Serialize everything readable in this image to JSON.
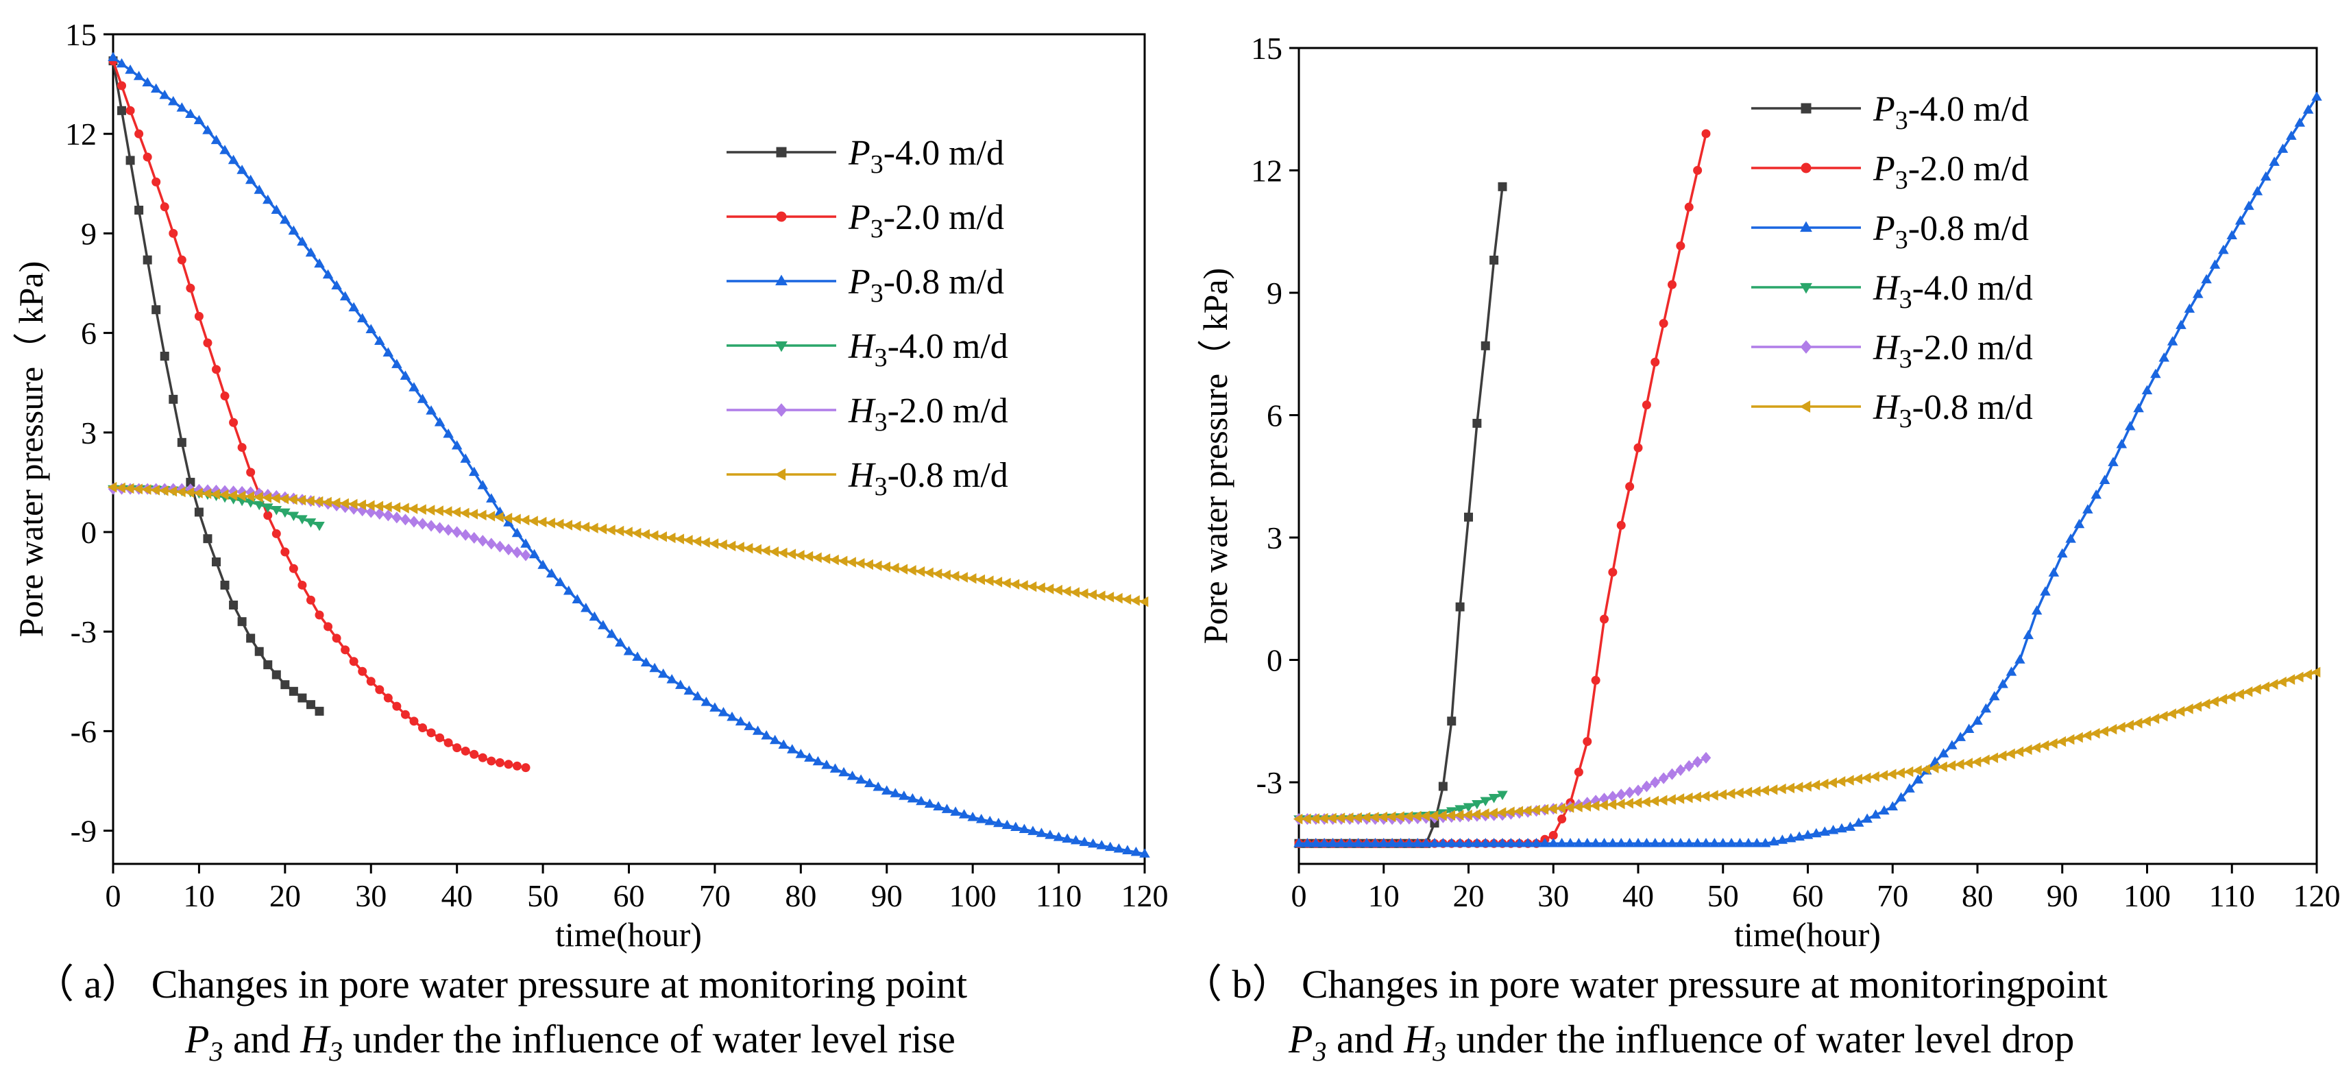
{
  "chart_data": [
    {
      "type": "line",
      "panel": "a",
      "xlabel": "time(hour)",
      "ylabel": "Pore water pressure（ kPa)",
      "xlim": [
        0,
        120
      ],
      "ylim": [
        -10,
        15
      ],
      "xticks": [
        0,
        10,
        20,
        30,
        40,
        50,
        60,
        70,
        80,
        90,
        100,
        110,
        120
      ],
      "yticks": [
        -9,
        -6,
        -3,
        0,
        3,
        6,
        9,
        12,
        15
      ],
      "legend_position": "top-right",
      "caption_line1": "（ a） Changes in pore water pressure at monitoring point",
      "caption_line2": {
        "p": "P",
        "p_sub": "3",
        "mid": " and ",
        "h": "H",
        "h_sub": "3",
        "rest": " under the  influence of water level rise"
      },
      "series": [
        {
          "name": "P3-4.0 m/d",
          "name_base": "P",
          "name_sub": "3",
          "name_rest": "-4.0 m/d",
          "color": "#3d3d3d",
          "marker": "square",
          "points": [
            [
              0,
              14.2
            ],
            [
              1,
              12.7
            ],
            [
              2,
              11.2
            ],
            [
              3,
              9.7
            ],
            [
              4,
              8.2
            ],
            [
              5,
              6.7
            ],
            [
              6,
              5.3
            ],
            [
              7,
              4
            ],
            [
              8,
              2.7
            ],
            [
              9,
              1.5
            ],
            [
              10,
              0.6
            ],
            [
              11,
              -0.2
            ],
            [
              12,
              -0.9
            ],
            [
              13,
              -1.6
            ],
            [
              14,
              -2.2
            ],
            [
              15,
              -2.7
            ],
            [
              16,
              -3.2
            ],
            [
              17,
              -3.6
            ],
            [
              18,
              -4
            ],
            [
              19,
              -4.3
            ],
            [
              20,
              -4.6
            ],
            [
              21,
              -4.8
            ],
            [
              22,
              -5
            ],
            [
              23,
              -5.2
            ],
            [
              24,
              -5.4
            ]
          ]
        },
        {
          "name": "P3-2.0 m/d",
          "name_base": "P",
          "name_sub": "3",
          "name_rest": "-2.0 m/d",
          "color": "#ee2a2a",
          "marker": "circle",
          "points": [
            [
              0,
              14.2
            ],
            [
              2,
              12.7
            ],
            [
              4,
              11.3
            ],
            [
              6,
              9.8
            ],
            [
              8,
              8.2
            ],
            [
              10,
              6.5
            ],
            [
              12,
              4.9
            ],
            [
              14,
              3.3
            ],
            [
              16,
              1.8
            ],
            [
              18,
              0.5
            ],
            [
              20,
              -0.6
            ],
            [
              22,
              -1.6
            ],
            [
              24,
              -2.5
            ],
            [
              26,
              -3.2
            ],
            [
              28,
              -3.9
            ],
            [
              30,
              -4.5
            ],
            [
              32,
              -5
            ],
            [
              34,
              -5.5
            ],
            [
              36,
              -5.9
            ],
            [
              38,
              -6.2
            ],
            [
              40,
              -6.5
            ],
            [
              42,
              -6.7
            ],
            [
              44,
              -6.9
            ],
            [
              46,
              -7
            ],
            [
              48,
              -7.1
            ]
          ]
        },
        {
          "name": "P3-0.8 m/d",
          "name_base": "P",
          "name_sub": "3",
          "name_rest": "-0.8 m/d",
          "color": "#1a66e0",
          "marker": "triangle-up",
          "points": [
            [
              0,
              14.3
            ],
            [
              10,
              12.4
            ],
            [
              20,
              9.4
            ],
            [
              30,
              6.1
            ],
            [
              40,
              2.6
            ],
            [
              45,
              0.6
            ],
            [
              50,
              -1
            ],
            [
              60,
              -3.6
            ],
            [
              70,
              -5.3
            ],
            [
              80,
              -6.7
            ],
            [
              90,
              -7.8
            ],
            [
              100,
              -8.6
            ],
            [
              110,
              -9.2
            ],
            [
              120,
              -9.7
            ]
          ]
        },
        {
          "name": "H3-4.0 m/d",
          "name_base": "H",
          "name_sub": "3",
          "name_rest": "-4.0 m/d",
          "color": "#2aa66a",
          "marker": "triangle-down",
          "points": [
            [
              0,
              1.3
            ],
            [
              4,
              1.3
            ],
            [
              8,
              1.25
            ],
            [
              12,
              1.1
            ],
            [
              16,
              0.9
            ],
            [
              20,
              0.6
            ],
            [
              24,
              0.2
            ]
          ]
        },
        {
          "name": "H3-2.0 m/d",
          "name_base": "H",
          "name_sub": "3",
          "name_rest": "-2.0 m/d",
          "color": "#b07de8",
          "marker": "diamond",
          "points": [
            [
              0,
              1.3
            ],
            [
              8,
              1.3
            ],
            [
              16,
              1.2
            ],
            [
              24,
              0.9
            ],
            [
              32,
              0.5
            ],
            [
              40,
              0
            ],
            [
              48,
              -0.7
            ]
          ]
        },
        {
          "name": "H3-0.8 m/d",
          "name_base": "H",
          "name_sub": "3",
          "name_rest": "-0.8 m/d",
          "color": "#d4a017",
          "marker": "triangle-left",
          "points": [
            [
              0,
              1.35
            ],
            [
              20,
              1
            ],
            [
              40,
              0.6
            ],
            [
              60,
              0
            ],
            [
              80,
              -0.7
            ],
            [
              100,
              -1.4
            ],
            [
              120,
              -2.1
            ]
          ]
        }
      ]
    },
    {
      "type": "line",
      "panel": "b",
      "xlabel": "time(hour)",
      "ylabel": "Pore water pressure（ kPa)",
      "xlim": [
        0,
        120
      ],
      "ylim": [
        -5,
        15
      ],
      "xticks": [
        0,
        10,
        20,
        30,
        40,
        50,
        60,
        70,
        80,
        90,
        100,
        110,
        120
      ],
      "yticks": [
        -3,
        0,
        3,
        6,
        9,
        12,
        15
      ],
      "legend_position": "top-left",
      "caption_line1": "（ b） Changes in pore water pressure at monitoringpoint",
      "caption_line2": {
        "p": "P",
        "p_sub": "3",
        "mid": " and ",
        "h": "H",
        "h_sub": "3",
        "rest": " under the  influence of water level  drop"
      },
      "series": [
        {
          "name": "P3-4.0 m/d",
          "name_base": "P",
          "name_sub": "3",
          "name_rest": "-4.0 m/d",
          "color": "#3d3d3d",
          "marker": "square",
          "points": [
            [
              0,
              -4.5
            ],
            [
              15,
              -4.5
            ],
            [
              16,
              -4
            ],
            [
              17,
              -3.1
            ],
            [
              18,
              -1.5
            ],
            [
              19,
              1.3
            ],
            [
              20,
              3.5
            ],
            [
              21,
              5.8
            ],
            [
              22,
              7.7
            ],
            [
              23,
              9.8
            ],
            [
              24,
              11.6
            ]
          ]
        },
        {
          "name": "P3-2.0 m/d",
          "name_base": "P",
          "name_sub": "3",
          "name_rest": "-2.0 m/d",
          "color": "#ee2a2a",
          "marker": "circle",
          "points": [
            [
              0,
              -4.5
            ],
            [
              28,
              -4.5
            ],
            [
              30,
              -4.3
            ],
            [
              32,
              -3.5
            ],
            [
              34,
              -2
            ],
            [
              36,
              1
            ],
            [
              38,
              3.3
            ],
            [
              40,
              5.2
            ],
            [
              42,
              7.3
            ],
            [
              44,
              9.2
            ],
            [
              46,
              11.1
            ],
            [
              47,
              12
            ],
            [
              48,
              12.9
            ]
          ]
        },
        {
          "name": "P3-0.8 m/d",
          "name_base": "P",
          "name_sub": "3",
          "name_rest": "-0.8 m/d",
          "color": "#1a66e0",
          "marker": "triangle-up",
          "points": [
            [
              0,
              -4.5
            ],
            [
              55,
              -4.5
            ],
            [
              60,
              -4.3
            ],
            [
              65,
              -4.1
            ],
            [
              70,
              -3.6
            ],
            [
              75,
              -2.5
            ],
            [
              80,
              -1.5
            ],
            [
              85,
              0
            ],
            [
              87,
              1.2
            ],
            [
              90,
              2.6
            ],
            [
              95,
              4.4
            ],
            [
              100,
              6.6
            ],
            [
              105,
              8.6
            ],
            [
              110,
              10.4
            ],
            [
              115,
              12.2
            ],
            [
              120,
              13.8
            ]
          ]
        },
        {
          "name": "H3-4.0 m/d",
          "name_base": "H",
          "name_sub": "3",
          "name_rest": "-4.0 m/d",
          "color": "#2aa66a",
          "marker": "triangle-down",
          "points": [
            [
              0,
              -3.9
            ],
            [
              6,
              -3.9
            ],
            [
              12,
              -3.85
            ],
            [
              16,
              -3.8
            ],
            [
              20,
              -3.6
            ],
            [
              24,
              -3.3
            ]
          ]
        },
        {
          "name": "H3-2.0 m/d",
          "name_base": "H",
          "name_sub": "3",
          "name_rest": "-2.0 m/d",
          "color": "#b07de8",
          "marker": "diamond",
          "points": [
            [
              0,
              -3.9
            ],
            [
              12,
              -3.9
            ],
            [
              24,
              -3.8
            ],
            [
              32,
              -3.6
            ],
            [
              40,
              -3.2
            ],
            [
              48,
              -2.4
            ]
          ]
        },
        {
          "name": "H3-0.8 m/d",
          "name_base": "H",
          "name_sub": "3",
          "name_rest": "-0.8 m/d",
          "color": "#d4a017",
          "marker": "triangle-left",
          "points": [
            [
              0,
              -3.9
            ],
            [
              20,
              -3.8
            ],
            [
              40,
              -3.5
            ],
            [
              60,
              -3.1
            ],
            [
              80,
              -2.5
            ],
            [
              100,
              -1.5
            ],
            [
              120,
              -0.3
            ]
          ]
        }
      ]
    }
  ]
}
